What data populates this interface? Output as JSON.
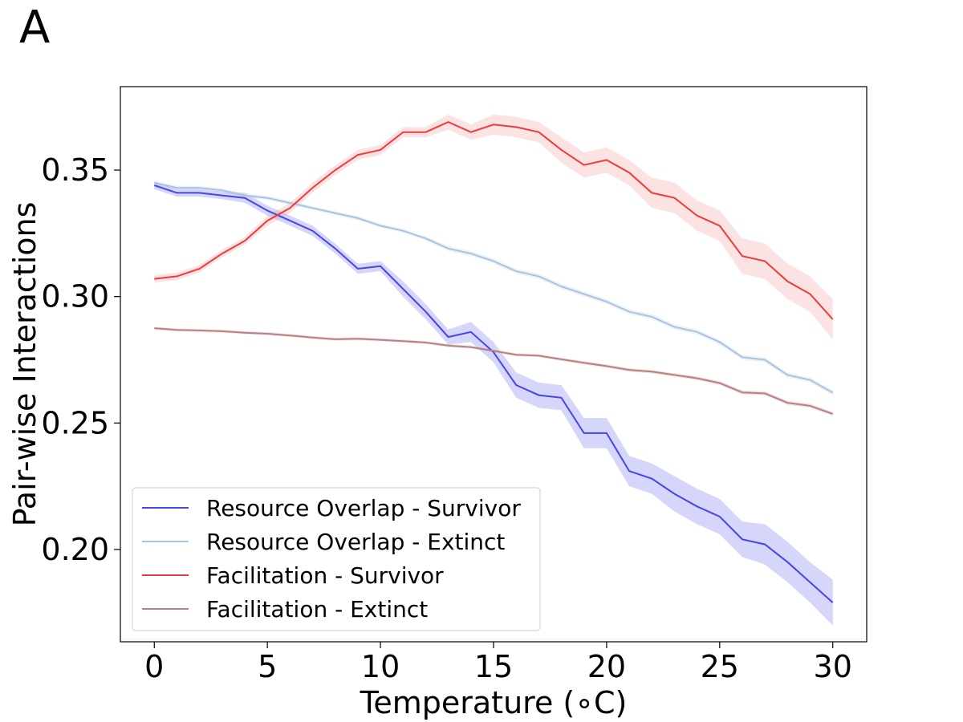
{
  "panel_label": "A",
  "chart_data": {
    "type": "line",
    "title": "",
    "xlabel": "Temperature (∘C)",
    "ylabel": "Pair-wise Interactions",
    "xlim": [
      -1.5,
      31.5
    ],
    "ylim": [
      0.1635,
      0.383
    ],
    "xticks": [
      0,
      5,
      10,
      15,
      20,
      25,
      30
    ],
    "yticks": [
      0.2,
      0.25,
      0.3,
      0.35
    ],
    "ytick_labels": [
      "0.20",
      "0.25",
      "0.30",
      "0.35"
    ],
    "grid": false,
    "legend_position": "lower-left",
    "x": [
      0,
      1,
      2,
      3,
      4,
      5,
      6,
      7,
      8,
      9,
      10,
      11,
      12,
      13,
      14,
      15,
      16,
      17,
      18,
      19,
      20,
      21,
      22,
      23,
      24,
      25,
      26,
      27,
      28,
      29,
      30
    ],
    "series": [
      {
        "name": "Resource Overlap - Survivor",
        "color": "#4545e8",
        "band_color": "#4545e8",
        "values": [
          0.344,
          0.341,
          0.341,
          0.34,
          0.339,
          0.334,
          0.33,
          0.326,
          0.319,
          0.311,
          0.312,
          0.303,
          0.294,
          0.284,
          0.286,
          0.278,
          0.265,
          0.261,
          0.26,
          0.246,
          0.246,
          0.231,
          0.228,
          0.222,
          0.217,
          0.213,
          0.204,
          0.202,
          0.195,
          0.187,
          0.179
        ],
        "band": [
          0.0015,
          0.0015,
          0.0015,
          0.0015,
          0.002,
          0.002,
          0.002,
          0.002,
          0.002,
          0.002,
          0.002,
          0.003,
          0.003,
          0.003,
          0.004,
          0.004,
          0.005,
          0.005,
          0.005,
          0.006,
          0.006,
          0.006,
          0.006,
          0.007,
          0.007,
          0.007,
          0.007,
          0.008,
          0.008,
          0.008,
          0.009
        ]
      },
      {
        "name": "Resource Overlap - Extinct",
        "color": "#a8c4e0",
        "band_color": "#a8c4e0",
        "values": [
          0.345,
          0.343,
          0.343,
          0.342,
          0.34,
          0.339,
          0.337,
          0.335,
          0.333,
          0.331,
          0.328,
          0.326,
          0.323,
          0.319,
          0.317,
          0.314,
          0.31,
          0.308,
          0.304,
          0.301,
          0.298,
          0.294,
          0.292,
          0.288,
          0.286,
          0.282,
          0.276,
          0.275,
          0.269,
          0.267,
          0.262
        ],
        "band": [
          0.0008,
          0.0008,
          0.0008,
          0.0008,
          0.0008,
          0.0008,
          0.0008,
          0.0008,
          0.0008,
          0.0008,
          0.0008,
          0.0008,
          0.0008,
          0.001,
          0.001,
          0.001,
          0.001,
          0.001,
          0.001,
          0.001,
          0.001,
          0.001,
          0.001,
          0.001,
          0.001,
          0.001,
          0.001,
          0.001,
          0.001,
          0.001,
          0.001
        ]
      },
      {
        "name": "Facilitation - Survivor",
        "color": "#ee3b3b",
        "band_color": "#f08080",
        "values": [
          0.307,
          0.308,
          0.311,
          0.317,
          0.322,
          0.33,
          0.335,
          0.343,
          0.35,
          0.356,
          0.358,
          0.365,
          0.365,
          0.369,
          0.365,
          0.368,
          0.367,
          0.365,
          0.358,
          0.352,
          0.354,
          0.349,
          0.341,
          0.339,
          0.332,
          0.328,
          0.316,
          0.314,
          0.306,
          0.301,
          0.291
        ],
        "band": [
          0.0015,
          0.0015,
          0.0015,
          0.0015,
          0.0015,
          0.002,
          0.002,
          0.002,
          0.002,
          0.002,
          0.002,
          0.002,
          0.002,
          0.003,
          0.003,
          0.004,
          0.004,
          0.004,
          0.005,
          0.005,
          0.005,
          0.005,
          0.006,
          0.006,
          0.006,
          0.006,
          0.007,
          0.007,
          0.007,
          0.007,
          0.008
        ]
      },
      {
        "name": "Facilitation - Extinct",
        "color": "#b88080",
        "band_color": "#b88080",
        "values": [
          0.2875,
          0.2868,
          0.2866,
          0.2863,
          0.2857,
          0.2853,
          0.2846,
          0.2838,
          0.2831,
          0.2833,
          0.2829,
          0.2824,
          0.2818,
          0.2806,
          0.28,
          0.2785,
          0.277,
          0.2766,
          0.2752,
          0.2738,
          0.2725,
          0.271,
          0.2703,
          0.269,
          0.2677,
          0.2658,
          0.2621,
          0.2617,
          0.258,
          0.2568,
          0.2536
        ],
        "band": [
          0.0006,
          0.0006,
          0.0006,
          0.0006,
          0.0006,
          0.0006,
          0.0006,
          0.0006,
          0.0006,
          0.0006,
          0.0006,
          0.0006,
          0.0006,
          0.0006,
          0.0006,
          0.0006,
          0.0006,
          0.0006,
          0.0006,
          0.0007,
          0.0007,
          0.0007,
          0.0007,
          0.0007,
          0.0007,
          0.0008,
          0.0008,
          0.0008,
          0.0008,
          0.0008,
          0.0008
        ]
      }
    ]
  }
}
